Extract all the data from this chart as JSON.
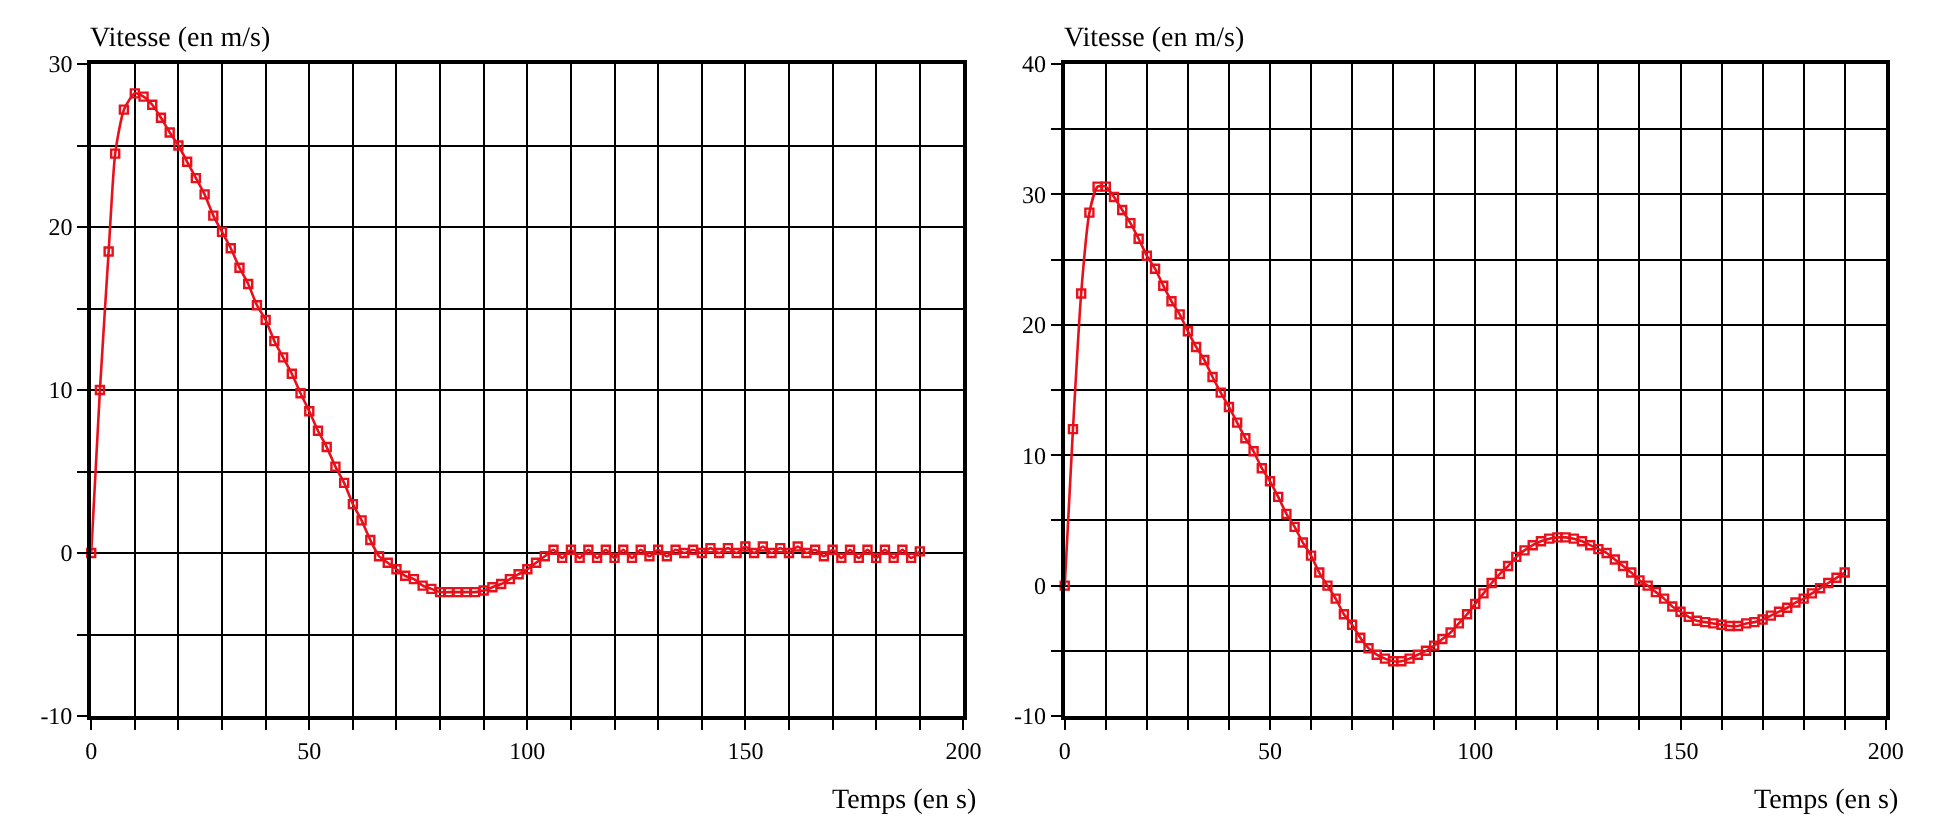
{
  "chart_data": [
    {
      "type": "line",
      "ylabel": "Vitesse (en m/s)",
      "xlabel": "Temps (en s)",
      "marker": "square",
      "line_style": "solid",
      "grid": true,
      "xlim": [
        0,
        200
      ],
      "ylim": [
        -10,
        30
      ],
      "xticks": [
        0,
        {
          "value": 10,
          "label": null
        },
        {
          "value": 20,
          "label": null
        },
        {
          "value": 30,
          "label": null
        },
        {
          "value": 40,
          "label": null
        },
        50,
        {
          "value": 60,
          "label": null
        },
        {
          "value": 70,
          "label": null
        },
        {
          "value": 80,
          "label": null
        },
        {
          "value": 90,
          "label": null
        },
        100,
        {
          "value": 110,
          "label": null
        },
        {
          "value": 120,
          "label": null
        },
        {
          "value": 130,
          "label": null
        },
        {
          "value": 140,
          "label": null
        },
        150,
        {
          "value": 160,
          "label": null
        },
        {
          "value": 170,
          "label": null
        },
        {
          "value": 180,
          "label": null
        },
        {
          "value": 190,
          "label": null
        },
        200
      ],
      "yticks": [
        -10,
        {
          "value": -5,
          "label": null
        },
        0,
        {
          "value": 5,
          "label": null
        },
        10,
        {
          "value": 15,
          "label": null
        },
        20,
        {
          "value": 25,
          "label": null
        },
        30
      ],
      "series": [
        {
          "color": "#e8101a",
          "x": [
            0,
            2,
            4,
            5.5,
            7.5,
            10,
            12,
            14,
            16,
            18,
            20,
            22,
            24,
            26,
            28,
            30,
            32,
            34,
            36,
            38,
            40,
            42,
            44,
            46,
            48,
            50,
            52,
            54,
            56,
            58,
            60,
            62,
            64,
            66,
            68,
            70,
            72,
            74,
            76,
            78,
            80,
            82,
            84,
            86,
            88,
            90,
            92,
            94,
            96,
            98,
            100,
            102,
            104,
            106,
            108,
            110,
            112,
            114,
            116,
            118,
            120,
            122,
            124,
            126,
            128,
            130,
            132,
            134,
            136,
            138,
            140,
            142,
            144,
            146,
            148,
            150,
            152,
            154,
            156,
            158,
            160,
            162,
            164,
            166,
            168,
            170,
            172,
            174,
            176,
            178,
            180,
            182,
            184,
            186,
            188,
            190
          ],
          "values": [
            0,
            10,
            18.5,
            24.5,
            27.2,
            28.2,
            28,
            27.5,
            26.7,
            25.8,
            25,
            24,
            23,
            22,
            20.7,
            19.7,
            18.7,
            17.5,
            16.5,
            15.2,
            14.3,
            13,
            12,
            11,
            9.8,
            8.7,
            7.5,
            6.5,
            5.3,
            4.3,
            3,
            2,
            0.8,
            -0.2,
            -0.6,
            -1,
            -1.4,
            -1.6,
            -2,
            -2.2,
            -2.4,
            -2.4,
            -2.4,
            -2.4,
            -2.4,
            -2.3,
            -2.1,
            -1.9,
            -1.6,
            -1.3,
            -1,
            -0.6,
            -0.2,
            0.2,
            -0.3,
            0.2,
            -0.3,
            0.2,
            -0.3,
            0.2,
            -0.3,
            0.2,
            -0.3,
            0.2,
            -0.2,
            0.2,
            -0.2,
            0.2,
            0,
            0.2,
            0,
            0.3,
            0,
            0.3,
            0,
            0.4,
            0,
            0.4,
            0,
            0.3,
            0,
            0.4,
            0,
            0.2,
            -0.2,
            0.2,
            -0.3,
            0.2,
            -0.3,
            0.2,
            -0.3,
            0.2,
            -0.3,
            0.2,
            -0.3,
            0.1
          ]
        }
      ]
    },
    {
      "type": "line",
      "ylabel": "Vitesse (en m/s)",
      "xlabel": "Temps (en s)",
      "marker": "square",
      "line_style": "solid",
      "grid": true,
      "xlim": [
        0,
        200
      ],
      "ylim": [
        -10,
        40
      ],
      "xticks": [
        0,
        {
          "value": 10,
          "label": null
        },
        {
          "value": 20,
          "label": null
        },
        {
          "value": 30,
          "label": null
        },
        {
          "value": 40,
          "label": null
        },
        50,
        {
          "value": 60,
          "label": null
        },
        {
          "value": 70,
          "label": null
        },
        {
          "value": 80,
          "label": null
        },
        {
          "value": 90,
          "label": null
        },
        100,
        {
          "value": 110,
          "label": null
        },
        {
          "value": 120,
          "label": null
        },
        {
          "value": 130,
          "label": null
        },
        {
          "value": 140,
          "label": null
        },
        150,
        {
          "value": 160,
          "label": null
        },
        {
          "value": 170,
          "label": null
        },
        {
          "value": 180,
          "label": null
        },
        {
          "value": 190,
          "label": null
        },
        200
      ],
      "yticks": [
        -10,
        {
          "value": -5,
          "label": null
        },
        0,
        {
          "value": 5,
          "label": null
        },
        10,
        {
          "value": 15,
          "label": null
        },
        20,
        {
          "value": 25,
          "label": null
        },
        30,
        {
          "value": 35,
          "label": null
        },
        40
      ],
      "series": [
        {
          "color": "#e8101a",
          "x": [
            0,
            2,
            4,
            6,
            8,
            10,
            12,
            14,
            16,
            18,
            20,
            22,
            24,
            26,
            28,
            30,
            32,
            34,
            36,
            38,
            40,
            42,
            44,
            46,
            48,
            50,
            52,
            54,
            56,
            58,
            60,
            62,
            64,
            66,
            68,
            70,
            72,
            74,
            76,
            78,
            80,
            82,
            84,
            86,
            88,
            90,
            92,
            94,
            96,
            98,
            100,
            102,
            104,
            106,
            108,
            110,
            112,
            114,
            116,
            118,
            120,
            122,
            124,
            126,
            128,
            130,
            132,
            134,
            136,
            138,
            140,
            142,
            144,
            146,
            148,
            150,
            152,
            154,
            156,
            158,
            160,
            162,
            164,
            166,
            168,
            170,
            172,
            174,
            176,
            178,
            180,
            182,
            184,
            186,
            188,
            190
          ],
          "values": [
            0,
            12,
            22.4,
            28.6,
            30.6,
            30.6,
            29.8,
            28.8,
            27.8,
            26.6,
            25.3,
            24.3,
            23,
            21.8,
            20.8,
            19.5,
            18.3,
            17.3,
            16,
            14.8,
            13.7,
            12.5,
            11.3,
            10.3,
            9,
            8,
            6.8,
            5.5,
            4.5,
            3.3,
            2.3,
            1,
            0,
            -1,
            -2.2,
            -3,
            -4,
            -4.8,
            -5.3,
            -5.6,
            -5.8,
            -5.8,
            -5.6,
            -5.3,
            -5,
            -4.6,
            -4.1,
            -3.6,
            -2.9,
            -2.2,
            -1.4,
            -0.6,
            0.2,
            0.9,
            1.5,
            2.2,
            2.7,
            3.1,
            3.4,
            3.6,
            3.7,
            3.7,
            3.6,
            3.4,
            3.1,
            2.8,
            2.5,
            2,
            1.5,
            1,
            0.4,
            0,
            -0.5,
            -1,
            -1.6,
            -2,
            -2.4,
            -2.7,
            -2.8,
            -2.9,
            -3,
            -3.1,
            -3.1,
            -2.9,
            -2.8,
            -2.6,
            -2.3,
            -2,
            -1.7,
            -1.3,
            -1,
            -0.6,
            -0.2,
            0.2,
            0.6,
            1
          ]
        }
      ]
    }
  ]
}
